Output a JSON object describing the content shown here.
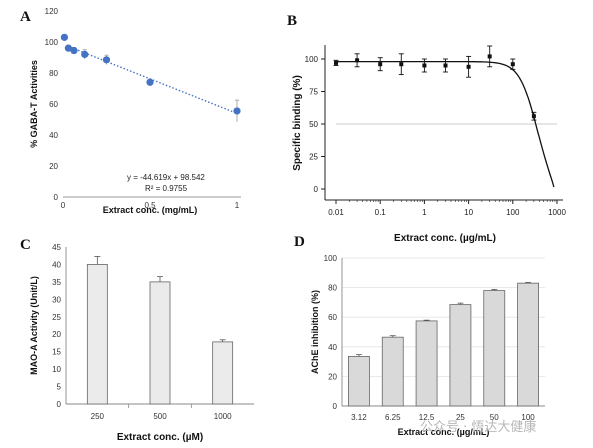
{
  "panels": {
    "a": "A",
    "b": "B",
    "c": "C",
    "d": "D"
  },
  "watermark": "公众号 · 悟达大健康",
  "chart_data": [
    {
      "id": "A",
      "type": "scatter",
      "xlabel": "Extract conc. (mg/mL)",
      "ylabel": "% GABA-T Activities",
      "xlim": [
        0,
        1
      ],
      "ylim": [
        0,
        120
      ],
      "xticks": [
        0,
        0.5,
        1
      ],
      "yticks": [
        0,
        20,
        40,
        60,
        80,
        100,
        120
      ],
      "x": [
        0.008,
        0.031,
        0.063,
        0.125,
        0.25,
        0.5,
        1.0
      ],
      "y": [
        103,
        96,
        94.5,
        92,
        88.5,
        74,
        55.5
      ],
      "error": [
        0,
        2,
        2,
        3,
        3,
        2,
        7
      ],
      "trendline": {
        "slope": -44.619,
        "intercept": 98.542,
        "style": "dotted"
      },
      "annotations": [
        "y = -44.619x + 98.542",
        "R² = 0.9755"
      ],
      "marker_color": "#4472c4"
    },
    {
      "id": "B",
      "type": "scatter",
      "xlabel": "Extract conc. (µg/mL)",
      "ylabel": "Specific binding (%)",
      "xscale": "log",
      "xlim": [
        0.01,
        1000
      ],
      "ylim": [
        0,
        100
      ],
      "xticks": [
        0.01,
        0.1,
        1,
        10,
        100,
        1000
      ],
      "xtick_labels": [
        "0.01",
        "0.1",
        "1",
        "10",
        "100",
        "1000"
      ],
      "yticks": [
        0,
        25,
        50,
        75,
        100
      ],
      "x": [
        0.01,
        0.03,
        0.1,
        0.3,
        1,
        3,
        10,
        30,
        100,
        300
      ],
      "y": [
        97,
        99,
        96,
        96,
        95,
        95,
        94,
        102,
        96,
        56
      ],
      "error": [
        2,
        5,
        5,
        8,
        5,
        5,
        8,
        8,
        4,
        3
      ],
      "reference_line": 50,
      "fit": "sigmoid",
      "marker_color": "#111111"
    },
    {
      "id": "C",
      "type": "bar",
      "xlabel": "Extract conc. (µM)",
      "ylabel": "MAO-A Activity (Unit/L)",
      "categories": [
        "250",
        "500",
        "1000"
      ],
      "values": [
        40,
        35,
        17.8
      ],
      "error": [
        2.3,
        1.5,
        0.6
      ],
      "ylim": [
        0,
        45
      ],
      "yticks": [
        0,
        5,
        10,
        15,
        20,
        25,
        30,
        35,
        40,
        45
      ],
      "bar_color": "#ebebeb"
    },
    {
      "id": "D",
      "type": "bar",
      "xlabel": "Extract conc. (µg/mL)",
      "ylabel": "AChE inhibition (%)",
      "categories": [
        "3.12",
        "6.25",
        "12.5",
        "25",
        "50",
        "100"
      ],
      "values": [
        33.5,
        46.5,
        57.5,
        68.5,
        78,
        83
      ],
      "error": [
        1.2,
        1,
        0.5,
        1,
        0.8,
        0.5
      ],
      "ylim": [
        0,
        100
      ],
      "yticks": [
        0,
        20,
        40,
        60,
        80,
        100
      ],
      "grid": true,
      "bar_color": "#d9d9d9"
    }
  ]
}
